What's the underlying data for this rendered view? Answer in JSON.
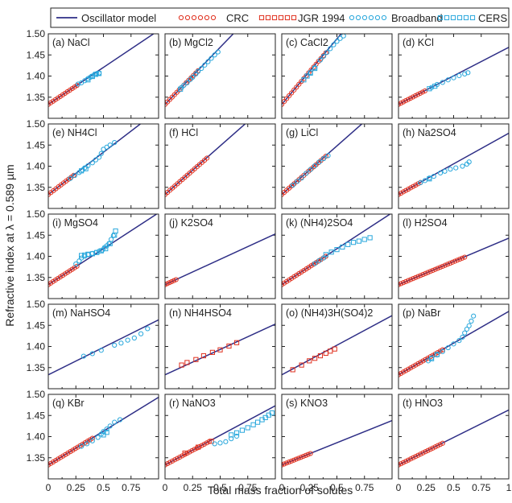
{
  "axis_labels": {
    "x": "Total mass fraction of solutes",
    "y": "Refractive index at λ = 0.589 µm"
  },
  "colors": {
    "model": "#2e2e86",
    "crc": "#e0301e",
    "jgr": "#e0301e",
    "broadband": "#28a7dc",
    "cers": "#28a7dc"
  },
  "legend": [
    "Oscillator model",
    "CRC",
    "JGR 1994",
    "Broadband",
    "CERS"
  ],
  "chart_data": {
    "type": "scatter",
    "xlim": [
      0,
      1
    ],
    "ylim": [
      1.3,
      1.5
    ],
    "xticks": [
      "0",
      "0.25",
      "0.5",
      "0.75",
      "1"
    ],
    "yticks": [
      "1.35",
      "1.40",
      "1.45",
      "1.50"
    ],
    "xlabel": "Total mass fraction of solutes",
    "ylabel": "Refractive index at λ = 0.589 µm",
    "legend_position": "top",
    "panels": [
      {
        "label": "(a) NaCl",
        "slope": 0.175,
        "crc": [
          0,
          0.26
        ],
        "jgr": null,
        "broadband": [
          [
            0.27,
            1.381
          ],
          [
            0.3,
            1.384
          ],
          [
            0.33,
            1.389
          ],
          [
            0.36,
            1.394
          ],
          [
            0.38,
            1.397
          ],
          [
            0.4,
            1.4
          ],
          [
            0.42,
            1.404
          ],
          [
            0.44,
            1.406
          ],
          [
            0.46,
            1.407
          ]
        ],
        "cers": [
          [
            0.36,
            1.391
          ],
          [
            0.4,
            1.399
          ],
          [
            0.43,
            1.404
          ],
          [
            0.46,
            1.406
          ]
        ]
      },
      {
        "label": "(b) MgCl2",
        "slope": 0.27,
        "crc": [
          0,
          0.3
        ],
        "jgr": null,
        "broadband": [
          [
            0.2,
            1.384
          ],
          [
            0.23,
            1.392
          ],
          [
            0.25,
            1.397
          ],
          [
            0.28,
            1.405
          ],
          [
            0.3,
            1.411
          ],
          [
            0.33,
            1.418
          ],
          [
            0.36,
            1.426
          ],
          [
            0.39,
            1.434
          ],
          [
            0.42,
            1.442
          ],
          [
            0.45,
            1.45
          ],
          [
            0.48,
            1.457
          ],
          [
            0.17,
            1.378
          ],
          [
            0.15,
            1.373
          ]
        ],
        "cers": [
          [
            0.14,
            1.369
          ]
        ]
      },
      {
        "label": "(c) CaCl2",
        "slope": 0.31,
        "crc": [
          0,
          0.4
        ],
        "jgr": null,
        "broadband": [
          [
            0.35,
            1.438
          ],
          [
            0.38,
            1.447
          ],
          [
            0.41,
            1.456
          ],
          [
            0.44,
            1.465
          ],
          [
            0.47,
            1.474
          ],
          [
            0.5,
            1.482
          ],
          [
            0.53,
            1.489
          ],
          [
            0.56,
            1.495
          ],
          [
            0.3,
            1.42
          ],
          [
            0.26,
            1.408
          ]
        ],
        "cers": [
          [
            0.2,
            1.391
          ],
          [
            0.23,
            1.4
          ],
          [
            0.26,
            1.407
          ],
          [
            0.3,
            1.418
          ]
        ]
      },
      {
        "label": "(d) KCl",
        "slope": 0.135,
        "crc": [
          0,
          0.24
        ],
        "jgr": null,
        "broadband": [
          [
            0.3,
            1.373
          ],
          [
            0.35,
            1.38
          ],
          [
            0.4,
            1.385
          ],
          [
            0.45,
            1.391
          ],
          [
            0.5,
            1.396
          ],
          [
            0.55,
            1.401
          ],
          [
            0.6,
            1.405
          ],
          [
            0.63,
            1.408
          ]
        ],
        "cers": [
          [
            0.28,
            1.37
          ],
          [
            0.33,
            1.376
          ]
        ]
      },
      {
        "label": "(e) NH4Cl",
        "slope": 0.2,
        "crc": [
          0,
          0.23
        ],
        "jgr": null,
        "broadband": [
          [
            0.2,
            1.371
          ],
          [
            0.24,
            1.378
          ],
          [
            0.28,
            1.385
          ],
          [
            0.31,
            1.391
          ],
          [
            0.33,
            1.396
          ],
          [
            0.36,
            1.401
          ],
          [
            0.4,
            1.408
          ],
          [
            0.43,
            1.415
          ],
          [
            0.46,
            1.421
          ],
          [
            0.48,
            1.43
          ],
          [
            0.5,
            1.44
          ],
          [
            0.53,
            1.445
          ],
          [
            0.56,
            1.45
          ],
          [
            0.6,
            1.456
          ]
        ],
        "cers": [
          [
            0.3,
            1.389
          ],
          [
            0.34,
            1.394
          ]
        ]
      },
      {
        "label": "(f) HCl",
        "slope": 0.23,
        "crc": [
          0,
          0.38
        ],
        "jgr": null,
        "broadband": null,
        "cers": null
      },
      {
        "label": "(g) LiCl",
        "slope": 0.23,
        "crc": [
          0,
          0.4
        ],
        "jgr": null,
        "broadband": [
          [
            0.1,
            1.355
          ],
          [
            0.14,
            1.364
          ],
          [
            0.18,
            1.372
          ],
          [
            0.22,
            1.383
          ],
          [
            0.26,
            1.392
          ],
          [
            0.3,
            1.401
          ],
          [
            0.34,
            1.41
          ],
          [
            0.38,
            1.418
          ],
          [
            0.42,
            1.425
          ]
        ],
        "cers": null
      },
      {
        "label": "(h) Na2SO4",
        "slope": 0.145,
        "crc": [
          0,
          0.2
        ],
        "jgr": null,
        "broadband": [
          [
            0.2,
            1.361
          ],
          [
            0.24,
            1.366
          ],
          [
            0.28,
            1.372
          ],
          [
            0.32,
            1.376
          ],
          [
            0.38,
            1.384
          ],
          [
            0.42,
            1.388
          ],
          [
            0.47,
            1.393
          ],
          [
            0.52,
            1.396
          ],
          [
            0.58,
            1.4
          ],
          [
            0.62,
            1.405
          ],
          [
            0.64,
            1.41
          ]
        ],
        "cers": [
          [
            0.28,
            1.37
          ]
        ]
      },
      {
        "label": "(i) MgSO4",
        "slope": 0.17,
        "crc": [
          0,
          0.26
        ],
        "jgr": null,
        "broadband": [
          [
            0.25,
            1.382
          ],
          [
            0.28,
            1.389
          ],
          [
            0.3,
            1.396
          ],
          [
            0.33,
            1.4
          ],
          [
            0.36,
            1.404
          ],
          [
            0.4,
            1.407
          ],
          [
            0.43,
            1.409
          ],
          [
            0.46,
            1.412
          ],
          [
            0.49,
            1.415
          ],
          [
            0.51,
            1.421
          ],
          [
            0.53,
            1.425
          ],
          [
            0.55,
            1.43
          ],
          [
            0.57,
            1.44
          ],
          [
            0.59,
            1.449
          ]
        ],
        "cers": [
          [
            0.3,
            1.402
          ],
          [
            0.33,
            1.403
          ],
          [
            0.36,
            1.405
          ],
          [
            0.4,
            1.406
          ],
          [
            0.44,
            1.409
          ],
          [
            0.48,
            1.413
          ],
          [
            0.52,
            1.418
          ],
          [
            0.56,
            1.43
          ],
          [
            0.6,
            1.45
          ],
          [
            0.61,
            1.46
          ]
        ]
      },
      {
        "label": "(j) K2SO4",
        "slope": 0.12,
        "crc": [
          0,
          0.1
        ],
        "jgr": null,
        "broadband": null,
        "cers": null
      },
      {
        "label": "(k) (NH4)2SO4",
        "slope": 0.17,
        "crc": [
          0,
          0.4
        ],
        "jgr": null,
        "broadband": [
          [
            0.3,
            1.383
          ],
          [
            0.34,
            1.39
          ],
          [
            0.38,
            1.396
          ]
        ],
        "cers": [
          [
            0.4,
            1.404
          ],
          [
            0.45,
            1.41
          ],
          [
            0.5,
            1.416
          ],
          [
            0.55,
            1.422
          ],
          [
            0.6,
            1.428
          ],
          [
            0.65,
            1.433
          ],
          [
            0.7,
            1.436
          ],
          [
            0.75,
            1.44
          ],
          [
            0.8,
            1.444
          ]
        ]
      },
      {
        "label": "(l) H2SO4",
        "slope": 0.11,
        "crc": [
          0,
          0.6
        ],
        "jgr": null,
        "broadband": null,
        "cers": null
      },
      {
        "label": "(m) NaHSO4",
        "slope": 0.13,
        "crc": null,
        "jgr": null,
        "broadband": [
          [
            0.32,
            1.377
          ],
          [
            0.4,
            1.383
          ],
          [
            0.48,
            1.391
          ],
          [
            0.6,
            1.403
          ],
          [
            0.66,
            1.408
          ],
          [
            0.72,
            1.415
          ],
          [
            0.78,
            1.42
          ],
          [
            0.84,
            1.43
          ],
          [
            0.9,
            1.442
          ]
        ],
        "cers": null
      },
      {
        "label": "(n) NH4HSO4",
        "slope": 0.12,
        "crc": null,
        "jgr": [
          [
            0.15,
            1.356
          ],
          [
            0.2,
            1.362
          ],
          [
            0.28,
            1.369
          ],
          [
            0.35,
            1.378
          ],
          [
            0.43,
            1.386
          ],
          [
            0.5,
            1.392
          ],
          [
            0.58,
            1.401
          ],
          [
            0.65,
            1.409
          ]
        ],
        "broadband": null,
        "cers": null
      },
      {
        "label": "(o) (NH4)3H(SO4)2",
        "slope": 0.14,
        "crc": null,
        "jgr": [
          [
            0.1,
            1.345
          ],
          [
            0.18,
            1.356
          ],
          [
            0.25,
            1.366
          ],
          [
            0.3,
            1.372
          ],
          [
            0.35,
            1.378
          ],
          [
            0.4,
            1.384
          ],
          [
            0.44,
            1.389
          ],
          [
            0.48,
            1.394
          ]
        ],
        "broadband": null,
        "cers": null
      },
      {
        "label": "(p) NaBr",
        "slope": 0.15,
        "crc": [
          0,
          0.4
        ],
        "jgr": null,
        "broadband": [
          [
            0.27,
            1.366
          ],
          [
            0.3,
            1.373
          ],
          [
            0.35,
            1.38
          ],
          [
            0.4,
            1.388
          ],
          [
            0.45,
            1.397
          ],
          [
            0.5,
            1.406
          ],
          [
            0.55,
            1.414
          ],
          [
            0.58,
            1.422
          ],
          [
            0.6,
            1.432
          ],
          [
            0.62,
            1.441
          ],
          [
            0.64,
            1.449
          ],
          [
            0.66,
            1.46
          ],
          [
            0.68,
            1.472
          ]
        ],
        "cers": [
          [
            0.3,
            1.371
          ],
          [
            0.35,
            1.381
          ]
        ]
      },
      {
        "label": "(q) KBr",
        "slope": 0.16,
        "crc": [
          0,
          0.4
        ],
        "jgr": null,
        "broadband": [
          [
            0.3,
            1.377
          ],
          [
            0.35,
            1.383
          ],
          [
            0.4,
            1.39
          ],
          [
            0.45,
            1.398
          ],
          [
            0.48,
            1.406
          ],
          [
            0.5,
            1.412
          ],
          [
            0.53,
            1.418
          ],
          [
            0.56,
            1.425
          ],
          [
            0.6,
            1.434
          ],
          [
            0.65,
            1.44
          ]
        ],
        "cers": [
          [
            0.5,
            1.404
          ],
          [
            0.53,
            1.41
          ]
        ]
      },
      {
        "label": "(r) NaNO3",
        "slope": 0.14,
        "crc": [
          0,
          0.4
        ],
        "jgr": [
          [
            0.18,
            1.361
          ],
          [
            0.3,
            1.375
          ],
          [
            0.42,
            1.389
          ]
        ],
        "broadband": [
          [
            0.45,
            1.383
          ],
          [
            0.5,
            1.385
          ],
          [
            0.55,
            1.388
          ],
          [
            0.6,
            1.395
          ],
          [
            0.65,
            1.401
          ]
        ],
        "cers": [
          [
            0.6,
            1.404
          ],
          [
            0.65,
            1.409
          ],
          [
            0.7,
            1.415
          ],
          [
            0.75,
            1.421
          ],
          [
            0.8,
            1.428
          ],
          [
            0.84,
            1.434
          ],
          [
            0.88,
            1.44
          ],
          [
            0.91,
            1.445
          ],
          [
            0.94,
            1.451
          ],
          [
            0.97,
            1.456
          ]
        ]
      },
      {
        "label": "(s) KNO3",
        "slope": 0.105,
        "crc": [
          0,
          0.26
        ],
        "jgr": null,
        "broadband": null,
        "cers": null
      },
      {
        "label": "(t) HNO3",
        "slope": 0.13,
        "crc": [
          0,
          0.4
        ],
        "jgr": null,
        "broadband": null,
        "cers": null
      }
    ]
  }
}
